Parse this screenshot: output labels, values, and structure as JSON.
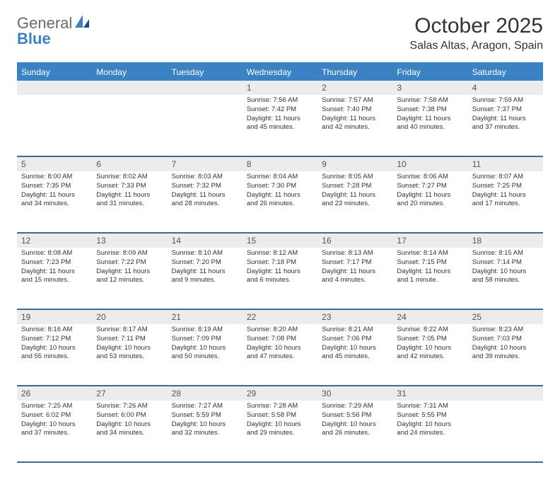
{
  "logo": {
    "text1": "General",
    "text2": "Blue"
  },
  "title": "October 2025",
  "location": "Salas Altas, Aragon, Spain",
  "weekdays": [
    "Sunday",
    "Monday",
    "Tuesday",
    "Wednesday",
    "Thursday",
    "Friday",
    "Saturday"
  ],
  "colors": {
    "header_bg": "#3b82c4",
    "header_text": "#ffffff",
    "daynum_bg": "#ececec",
    "border": "#3b6a94",
    "text": "#333333"
  },
  "weeks": [
    [
      {
        "n": "",
        "sunrise": "",
        "sunset": "",
        "daylight": ""
      },
      {
        "n": "",
        "sunrise": "",
        "sunset": "",
        "daylight": ""
      },
      {
        "n": "",
        "sunrise": "",
        "sunset": "",
        "daylight": ""
      },
      {
        "n": "1",
        "sunrise": "Sunrise: 7:56 AM",
        "sunset": "Sunset: 7:42 PM",
        "daylight": "Daylight: 11 hours and 45 minutes."
      },
      {
        "n": "2",
        "sunrise": "Sunrise: 7:57 AM",
        "sunset": "Sunset: 7:40 PM",
        "daylight": "Daylight: 11 hours and 42 minutes."
      },
      {
        "n": "3",
        "sunrise": "Sunrise: 7:58 AM",
        "sunset": "Sunset: 7:38 PM",
        "daylight": "Daylight: 11 hours and 40 minutes."
      },
      {
        "n": "4",
        "sunrise": "Sunrise: 7:59 AM",
        "sunset": "Sunset: 7:37 PM",
        "daylight": "Daylight: 11 hours and 37 minutes."
      }
    ],
    [
      {
        "n": "5",
        "sunrise": "Sunrise: 8:00 AM",
        "sunset": "Sunset: 7:35 PM",
        "daylight": "Daylight: 11 hours and 34 minutes."
      },
      {
        "n": "6",
        "sunrise": "Sunrise: 8:02 AM",
        "sunset": "Sunset: 7:33 PM",
        "daylight": "Daylight: 11 hours and 31 minutes."
      },
      {
        "n": "7",
        "sunrise": "Sunrise: 8:03 AM",
        "sunset": "Sunset: 7:32 PM",
        "daylight": "Daylight: 11 hours and 28 minutes."
      },
      {
        "n": "8",
        "sunrise": "Sunrise: 8:04 AM",
        "sunset": "Sunset: 7:30 PM",
        "daylight": "Daylight: 11 hours and 26 minutes."
      },
      {
        "n": "9",
        "sunrise": "Sunrise: 8:05 AM",
        "sunset": "Sunset: 7:28 PM",
        "daylight": "Daylight: 11 hours and 23 minutes."
      },
      {
        "n": "10",
        "sunrise": "Sunrise: 8:06 AM",
        "sunset": "Sunset: 7:27 PM",
        "daylight": "Daylight: 11 hours and 20 minutes."
      },
      {
        "n": "11",
        "sunrise": "Sunrise: 8:07 AM",
        "sunset": "Sunset: 7:25 PM",
        "daylight": "Daylight: 11 hours and 17 minutes."
      }
    ],
    [
      {
        "n": "12",
        "sunrise": "Sunrise: 8:08 AM",
        "sunset": "Sunset: 7:23 PM",
        "daylight": "Daylight: 11 hours and 15 minutes."
      },
      {
        "n": "13",
        "sunrise": "Sunrise: 8:09 AM",
        "sunset": "Sunset: 7:22 PM",
        "daylight": "Daylight: 11 hours and 12 minutes."
      },
      {
        "n": "14",
        "sunrise": "Sunrise: 8:10 AM",
        "sunset": "Sunset: 7:20 PM",
        "daylight": "Daylight: 11 hours and 9 minutes."
      },
      {
        "n": "15",
        "sunrise": "Sunrise: 8:12 AM",
        "sunset": "Sunset: 7:18 PM",
        "daylight": "Daylight: 11 hours and 6 minutes."
      },
      {
        "n": "16",
        "sunrise": "Sunrise: 8:13 AM",
        "sunset": "Sunset: 7:17 PM",
        "daylight": "Daylight: 11 hours and 4 minutes."
      },
      {
        "n": "17",
        "sunrise": "Sunrise: 8:14 AM",
        "sunset": "Sunset: 7:15 PM",
        "daylight": "Daylight: 11 hours and 1 minute."
      },
      {
        "n": "18",
        "sunrise": "Sunrise: 8:15 AM",
        "sunset": "Sunset: 7:14 PM",
        "daylight": "Daylight: 10 hours and 58 minutes."
      }
    ],
    [
      {
        "n": "19",
        "sunrise": "Sunrise: 8:16 AM",
        "sunset": "Sunset: 7:12 PM",
        "daylight": "Daylight: 10 hours and 55 minutes."
      },
      {
        "n": "20",
        "sunrise": "Sunrise: 8:17 AM",
        "sunset": "Sunset: 7:11 PM",
        "daylight": "Daylight: 10 hours and 53 minutes."
      },
      {
        "n": "21",
        "sunrise": "Sunrise: 8:19 AM",
        "sunset": "Sunset: 7:09 PM",
        "daylight": "Daylight: 10 hours and 50 minutes."
      },
      {
        "n": "22",
        "sunrise": "Sunrise: 8:20 AM",
        "sunset": "Sunset: 7:08 PM",
        "daylight": "Daylight: 10 hours and 47 minutes."
      },
      {
        "n": "23",
        "sunrise": "Sunrise: 8:21 AM",
        "sunset": "Sunset: 7:06 PM",
        "daylight": "Daylight: 10 hours and 45 minutes."
      },
      {
        "n": "24",
        "sunrise": "Sunrise: 8:22 AM",
        "sunset": "Sunset: 7:05 PM",
        "daylight": "Daylight: 10 hours and 42 minutes."
      },
      {
        "n": "25",
        "sunrise": "Sunrise: 8:23 AM",
        "sunset": "Sunset: 7:03 PM",
        "daylight": "Daylight: 10 hours and 39 minutes."
      }
    ],
    [
      {
        "n": "26",
        "sunrise": "Sunrise: 7:25 AM",
        "sunset": "Sunset: 6:02 PM",
        "daylight": "Daylight: 10 hours and 37 minutes."
      },
      {
        "n": "27",
        "sunrise": "Sunrise: 7:26 AM",
        "sunset": "Sunset: 6:00 PM",
        "daylight": "Daylight: 10 hours and 34 minutes."
      },
      {
        "n": "28",
        "sunrise": "Sunrise: 7:27 AM",
        "sunset": "Sunset: 5:59 PM",
        "daylight": "Daylight: 10 hours and 32 minutes."
      },
      {
        "n": "29",
        "sunrise": "Sunrise: 7:28 AM",
        "sunset": "Sunset: 5:58 PM",
        "daylight": "Daylight: 10 hours and 29 minutes."
      },
      {
        "n": "30",
        "sunrise": "Sunrise: 7:29 AM",
        "sunset": "Sunset: 5:56 PM",
        "daylight": "Daylight: 10 hours and 26 minutes."
      },
      {
        "n": "31",
        "sunrise": "Sunrise: 7:31 AM",
        "sunset": "Sunset: 5:55 PM",
        "daylight": "Daylight: 10 hours and 24 minutes."
      },
      {
        "n": "",
        "sunrise": "",
        "sunset": "",
        "daylight": ""
      }
    ]
  ]
}
